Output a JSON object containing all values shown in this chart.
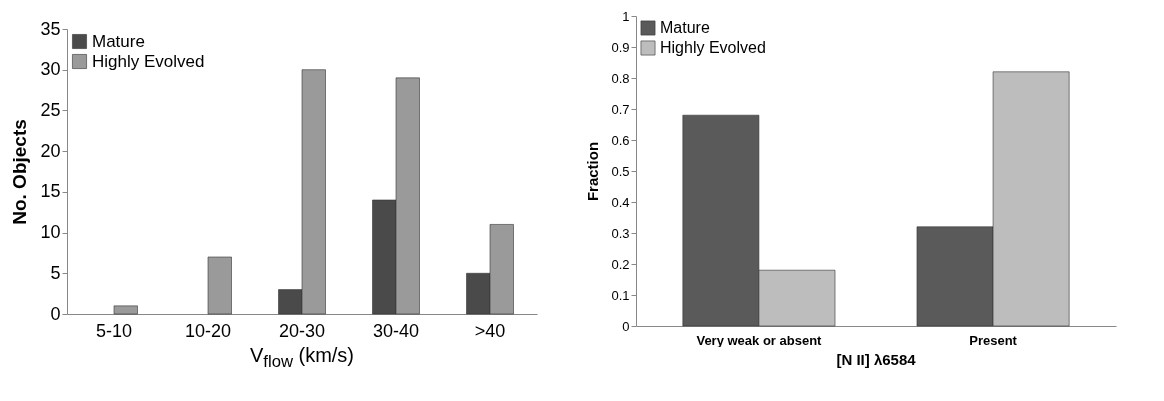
{
  "chart_data": [
    {
      "type": "bar",
      "xlabel": "V$_{flow}$ (km/s)",
      "ylabel": "No.  Objects",
      "categories": [
        "5-10",
        "10-20",
        "20-30",
        "30-40",
        ">40"
      ],
      "series": [
        {
          "name": "Mature",
          "color": "#4a4a4a",
          "values": [
            null,
            null,
            3,
            14,
            5
          ]
        },
        {
          "name": "Highly Evolved",
          "color": "#9a9a9a",
          "values": [
            1,
            7,
            30,
            29,
            11
          ]
        }
      ],
      "ylim": [
        0,
        35
      ],
      "yticks": [
        0,
        5,
        10,
        15,
        20,
        25,
        30,
        35
      ],
      "legend": "top left"
    },
    {
      "type": "bar",
      "xlabel": "[N II] λ6584",
      "ylabel": "Fraction",
      "categories": [
        "Very weak or absent",
        "Present"
      ],
      "series": [
        {
          "name": "Mature",
          "color": "#5a5a5a",
          "values": [
            0.68,
            0.32
          ]
        },
        {
          "name": "Highly Evolved",
          "color": "#bdbdbd",
          "values": [
            0.18,
            0.82
          ]
        }
      ],
      "ylim": [
        0,
        1
      ],
      "yticks": [
        0,
        0.1,
        0.2,
        0.3,
        0.4,
        0.5,
        0.6,
        0.7,
        0.8,
        0.9,
        1
      ],
      "legend": "top left"
    }
  ]
}
